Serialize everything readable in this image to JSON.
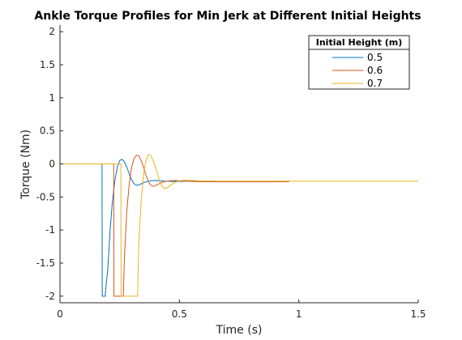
{
  "chart_data": {
    "type": "line",
    "title": "Ankle Torque Profiles for Min Jerk at Different Initial Heights",
    "xlabel": "Time (s)",
    "ylabel": "Torque (Nm)",
    "xlim": [
      0,
      1.5
    ],
    "ylim": [
      -2.1,
      2.1
    ],
    "xticks": [
      0,
      0.5,
      1,
      1.5
    ],
    "xtick_labels": [
      "0",
      "0.5",
      "1",
      "1.5"
    ],
    "yticks": [
      2,
      1.5,
      1,
      0.5,
      0,
      -0.5,
      -1,
      -1.5,
      -2
    ],
    "ytick_labels": [
      "2",
      "1.5",
      "1",
      "0.5",
      "0",
      "-0.5",
      "-1",
      "-1.5",
      "-2"
    ],
    "grid": false,
    "legend": {
      "title": "Initial Height (m)",
      "location": "top-right"
    },
    "series": [
      {
        "name": "0.5",
        "color": "#0072bd",
        "x": [
          0,
          0.176,
          0.177,
          0.18,
          0.19,
          0.19,
          0.2,
          0.21,
          0.22,
          0.23,
          0.24,
          0.25,
          0.26,
          0.27,
          0.28,
          0.29,
          0.3,
          0.31,
          0.32,
          0.33,
          0.34,
          0.36,
          0.38,
          0.4,
          0.42,
          0.44,
          0.47,
          0.5,
          0.55,
          0.6,
          0.65
        ],
        "y": [
          0,
          0,
          -2,
          -2,
          -2,
          -1.95,
          -1.6,
          -1.0,
          -0.55,
          -0.25,
          -0.05,
          0.05,
          0.07,
          0.03,
          -0.05,
          -0.15,
          -0.24,
          -0.3,
          -0.32,
          -0.32,
          -0.3,
          -0.27,
          -0.255,
          -0.25,
          -0.255,
          -0.26,
          -0.265,
          -0.265,
          -0.26,
          -0.26,
          -0.26
        ]
      },
      {
        "name": "0.6",
        "color": "#d95319",
        "x": [
          0,
          0.225,
          0.226,
          0.23,
          0.25,
          0.265,
          0.27,
          0.28,
          0.29,
          0.3,
          0.31,
          0.32,
          0.33,
          0.34,
          0.35,
          0.36,
          0.37,
          0.38,
          0.39,
          0.4,
          0.42,
          0.44,
          0.46,
          0.48,
          0.5,
          0.55,
          0.6,
          0.65,
          0.7,
          0.8,
          0.96
        ],
        "y": [
          0,
          0,
          -2,
          -2,
          -2,
          -2,
          -1.4,
          -0.7,
          -0.3,
          -0.05,
          0.08,
          0.13,
          0.12,
          0.05,
          -0.05,
          -0.17,
          -0.27,
          -0.32,
          -0.34,
          -0.33,
          -0.29,
          -0.265,
          -0.255,
          -0.25,
          -0.255,
          -0.265,
          -0.27,
          -0.27,
          -0.27,
          -0.27,
          -0.27
        ]
      },
      {
        "name": "0.7",
        "color": "#edb120",
        "x": [
          0,
          0.255,
          0.256,
          0.28,
          0.3,
          0.325,
          0.33,
          0.34,
          0.35,
          0.36,
          0.37,
          0.38,
          0.39,
          0.4,
          0.41,
          0.42,
          0.43,
          0.44,
          0.45,
          0.46,
          0.48,
          0.5,
          0.52,
          0.55,
          0.6,
          0.65,
          0.7,
          0.8,
          1.0,
          1.2,
          1.5
        ],
        "y": [
          0,
          0,
          -2,
          -2,
          -2,
          -2,
          -1.2,
          -0.55,
          -0.15,
          0.05,
          0.14,
          0.13,
          0.05,
          -0.05,
          -0.17,
          -0.29,
          -0.35,
          -0.37,
          -0.36,
          -0.33,
          -0.28,
          -0.255,
          -0.245,
          -0.25,
          -0.26,
          -0.26,
          -0.26,
          -0.26,
          -0.26,
          -0.26,
          -0.26
        ]
      }
    ]
  }
}
